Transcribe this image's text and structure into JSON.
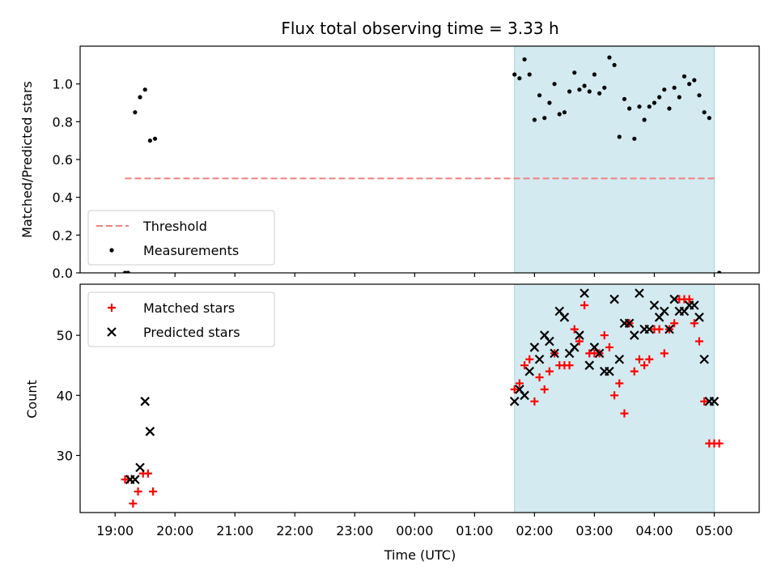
{
  "chart_data": [
    {
      "type": "scatter",
      "title": "Flux total observing time = 3.33 h",
      "ylabel": "Matched/Predicted stars",
      "ylim": [
        0,
        1.2
      ],
      "yticks": [
        "0.0",
        "0.2",
        "0.4",
        "0.6",
        "0.8",
        "1.0"
      ],
      "shaded_region": {
        "x": [
          "01:40",
          "05:00"
        ],
        "color": "#d3eaf0"
      },
      "threshold": {
        "name": "Threshold",
        "y": 0.5,
        "x": [
          "19:10",
          "05:00"
        ],
        "color": "#f08080"
      },
      "series": [
        {
          "name": "Measurements",
          "color": "#000000",
          "x": [
            "19:10",
            "19:13",
            "19:20",
            "19:25",
            "19:30",
            "19:35",
            "19:40",
            "01:40",
            "01:45",
            "01:50",
            "01:55",
            "02:00",
            "02:05",
            "02:10",
            "02:15",
            "02:20",
            "02:25",
            "02:30",
            "02:35",
            "02:40",
            "02:45",
            "02:50",
            "02:55",
            "03:00",
            "03:05",
            "03:10",
            "03:15",
            "03:20",
            "03:25",
            "03:30",
            "03:35",
            "03:40",
            "03:45",
            "03:50",
            "03:55",
            "04:00",
            "04:05",
            "04:10",
            "04:15",
            "04:20",
            "04:25",
            "04:30",
            "04:35",
            "04:40",
            "04:45",
            "04:50",
            "04:55",
            "05:05"
          ],
          "y": [
            0.0,
            0.0,
            0.85,
            0.93,
            0.97,
            0.7,
            0.71,
            1.05,
            1.03,
            1.13,
            1.05,
            0.81,
            0.94,
            0.82,
            0.9,
            1.0,
            0.84,
            0.85,
            0.96,
            1.06,
            0.97,
            0.99,
            0.96,
            1.05,
            0.95,
            0.98,
            1.14,
            1.1,
            0.72,
            0.92,
            0.87,
            0.71,
            0.88,
            0.81,
            0.88,
            0.9,
            0.93,
            0.97,
            0.87,
            0.98,
            0.93,
            1.04,
            1.0,
            1.02,
            0.94,
            0.85,
            0.82,
            0.0
          ]
        }
      ],
      "legend": {
        "placement": "lower-left",
        "entries": [
          "Threshold",
          "Measurements"
        ]
      }
    },
    {
      "type": "scatter",
      "xlabel": "Time (UTC)",
      "ylabel": "Count",
      "ylim": [
        20.5,
        58.5
      ],
      "yticks": [
        "30",
        "40",
        "50"
      ],
      "xticks": [
        "19:00",
        "20:00",
        "21:00",
        "22:00",
        "23:00",
        "00:00",
        "01:00",
        "02:00",
        "03:00",
        "04:00",
        "05:00"
      ],
      "shaded_region": {
        "x": [
          "01:40",
          "05:00"
        ],
        "color": "#d3eaf0"
      },
      "series": [
        {
          "name": "Matched stars",
          "marker": "+",
          "color": "#ff0000",
          "x": [
            "19:10",
            "19:13",
            "19:18",
            "19:23",
            "19:28",
            "19:33",
            "19:38",
            "01:40",
            "01:45",
            "01:50",
            "01:55",
            "02:00",
            "02:05",
            "02:10",
            "02:15",
            "02:20",
            "02:25",
            "02:30",
            "02:35",
            "02:40",
            "02:45",
            "02:50",
            "02:55",
            "03:00",
            "03:05",
            "03:10",
            "03:15",
            "03:20",
            "03:25",
            "03:30",
            "03:35",
            "03:40",
            "03:45",
            "03:50",
            "03:55",
            "04:00",
            "04:05",
            "04:10",
            "04:15",
            "04:20",
            "04:25",
            "04:30",
            "04:35",
            "04:40",
            "04:45",
            "04:50",
            "04:55",
            "05:00",
            "05:05"
          ],
          "y": [
            26,
            26,
            22,
            24,
            27,
            27,
            24,
            41,
            42,
            45,
            46,
            39,
            43,
            41,
            44,
            47,
            45,
            45,
            45,
            51,
            49,
            55,
            47,
            47,
            47,
            50,
            48,
            40,
            42,
            37,
            52,
            44,
            46,
            45,
            46,
            51,
            51,
            47,
            51,
            52,
            56,
            56,
            56,
            52,
            49,
            39,
            32,
            32,
            32
          ]
        },
        {
          "name": "Predicted stars",
          "marker": "x",
          "color": "#000000",
          "x": [
            "19:15",
            "19:20",
            "19:25",
            "19:30",
            "19:35",
            "01:40",
            "01:45",
            "01:50",
            "01:55",
            "02:00",
            "02:05",
            "02:10",
            "02:15",
            "02:20",
            "02:25",
            "02:30",
            "02:35",
            "02:40",
            "02:45",
            "02:50",
            "02:55",
            "03:00",
            "03:05",
            "03:10",
            "03:15",
            "03:20",
            "03:25",
            "03:30",
            "03:35",
            "03:40",
            "03:45",
            "03:50",
            "03:55",
            "04:00",
            "04:05",
            "04:10",
            "04:15",
            "04:20",
            "04:25",
            "04:30",
            "04:35",
            "04:40",
            "04:45",
            "04:50",
            "04:55",
            "05:00"
          ],
          "y": [
            26,
            26,
            28,
            39,
            34,
            39,
            41,
            40,
            44,
            48,
            46,
            50,
            49,
            47,
            54,
            53,
            47,
            48,
            50,
            57,
            45,
            48,
            47,
            44,
            44,
            56,
            46,
            52,
            52,
            50,
            57,
            51,
            51,
            55,
            53,
            54,
            51,
            56,
            54,
            54,
            55,
            55,
            53,
            46,
            39,
            39
          ]
        }
      ],
      "legend": {
        "placement": "upper-left",
        "entries": [
          "Matched stars",
          "Predicted stars"
        ]
      }
    }
  ]
}
